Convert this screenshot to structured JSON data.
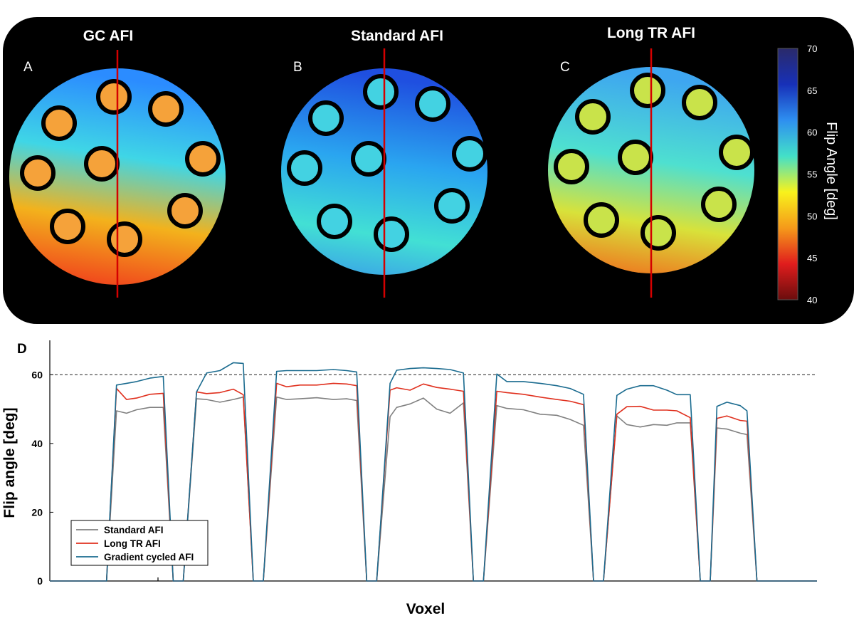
{
  "top_panel": {
    "colors": {
      "background": "#000000",
      "guide_line": "#d40000",
      "label_text": "#ffffff"
    },
    "panels": [
      {
        "letter": "A",
        "title": "GC AFI",
        "gradient_stops": [
          {
            "offset": 0.0,
            "color": "#2b8cff"
          },
          {
            "offset": 0.35,
            "color": "#3fd6e6"
          },
          {
            "offset": 0.65,
            "color": "#f3b21c"
          },
          {
            "offset": 1.0,
            "color": "#f0341c"
          }
        ],
        "inner_fill": "#f5a23a"
      },
      {
        "letter": "B",
        "title": "Standard AFI",
        "gradient_stops": [
          {
            "offset": 0.0,
            "color": "#1f4fe0"
          },
          {
            "offset": 0.4,
            "color": "#2aa5f0"
          },
          {
            "offset": 0.75,
            "color": "#42e0d4"
          },
          {
            "offset": 1.0,
            "color": "#3a9ee8"
          }
        ],
        "inner_fill": "#43d2e2"
      },
      {
        "letter": "C",
        "title": "Long TR AFI",
        "gradient_stops": [
          {
            "offset": 0.0,
            "color": "#3ea6f0"
          },
          {
            "offset": 0.4,
            "color": "#4ee0d0"
          },
          {
            "offset": 0.7,
            "color": "#d8e23a"
          },
          {
            "offset": 1.0,
            "color": "#f06a1c"
          }
        ],
        "inner_fill": "#c9e34a"
      }
    ],
    "colorbar": {
      "label": "Flip Angle [deg]",
      "ticks": [
        "40",
        "45",
        "50",
        "55",
        "60",
        "65",
        "70"
      ],
      "stops": [
        "#6a0d0d",
        "#e01d1d",
        "#f59a1a",
        "#f8f21c",
        "#43e0c8",
        "#2e8ff0",
        "#1730b8",
        "#2a2a6a"
      ]
    }
  },
  "chart_data": {
    "type": "line",
    "panel_letter": "D",
    "xlabel": "Voxel",
    "ylabel": "Flip angle [deg]",
    "ylim": [
      0,
      70
    ],
    "xlim": [
      0,
      230
    ],
    "yticks": [
      "0",
      "20",
      "40",
      "60"
    ],
    "reference_line": {
      "y": 60,
      "style": "dashed"
    },
    "grid": false,
    "legend_position": "bottom-left",
    "series": [
      {
        "name": "Standard AFI",
        "color": "#808080",
        "points": [
          [
            0,
            0
          ],
          [
            17,
            0
          ],
          [
            20,
            49.5
          ],
          [
            23,
            48.8
          ],
          [
            26,
            49.8
          ],
          [
            30,
            50.5
          ],
          [
            34,
            50.5
          ],
          [
            37,
            0
          ],
          [
            40,
            0
          ],
          [
            44,
            53
          ],
          [
            47,
            52.8
          ],
          [
            51,
            52
          ],
          [
            55,
            52.8
          ],
          [
            58,
            53.5
          ],
          [
            61,
            0
          ],
          [
            64,
            0
          ],
          [
            68,
            53.5
          ],
          [
            71,
            52.8
          ],
          [
            75,
            53
          ],
          [
            80,
            53.3
          ],
          [
            85,
            52.8
          ],
          [
            89,
            53
          ],
          [
            92,
            52.5
          ],
          [
            95,
            0
          ],
          [
            98,
            0
          ],
          [
            102,
            47.8
          ],
          [
            104,
            50.5
          ],
          [
            108,
            51.5
          ],
          [
            112,
            53.2
          ],
          [
            116,
            50
          ],
          [
            120,
            48.8
          ],
          [
            124,
            51.8
          ],
          [
            127,
            0
          ],
          [
            130,
            0
          ],
          [
            134,
            51
          ],
          [
            137,
            50.2
          ],
          [
            142,
            49.8
          ],
          [
            147,
            48.5
          ],
          [
            152,
            48.2
          ],
          [
            156,
            47
          ],
          [
            160,
            45.3
          ],
          [
            163,
            0
          ],
          [
            166,
            0
          ],
          [
            170,
            48
          ],
          [
            173,
            45.5
          ],
          [
            177,
            44.8
          ],
          [
            181,
            45.5
          ],
          [
            185,
            45.3
          ],
          [
            188,
            46
          ],
          [
            192,
            46
          ],
          [
            195,
            0
          ],
          [
            198,
            0
          ],
          [
            200,
            44.5
          ],
          [
            203,
            44.2
          ],
          [
            207,
            43
          ],
          [
            209,
            42.6
          ],
          [
            212,
            0
          ],
          [
            230,
            0
          ]
        ]
      },
      {
        "name": "Long TR AFI",
        "color": "#e0301e",
        "points": [
          [
            0,
            0
          ],
          [
            17,
            0
          ],
          [
            20,
            56
          ],
          [
            23,
            52.8
          ],
          [
            26,
            53.2
          ],
          [
            30,
            54.3
          ],
          [
            34,
            54.6
          ],
          [
            37,
            0
          ],
          [
            40,
            0
          ],
          [
            44,
            55
          ],
          [
            47,
            54.5
          ],
          [
            51,
            54.8
          ],
          [
            55,
            55.8
          ],
          [
            58,
            54.2
          ],
          [
            61,
            0
          ],
          [
            64,
            0
          ],
          [
            68,
            57.5
          ],
          [
            71,
            56.5
          ],
          [
            75,
            57
          ],
          [
            80,
            57
          ],
          [
            85,
            57.5
          ],
          [
            89,
            57.3
          ],
          [
            92,
            56.8
          ],
          [
            95,
            0
          ],
          [
            98,
            0
          ],
          [
            102,
            55.5
          ],
          [
            104,
            56.2
          ],
          [
            108,
            55.5
          ],
          [
            112,
            57.3
          ],
          [
            116,
            56.3
          ],
          [
            120,
            55.8
          ],
          [
            124,
            55.2
          ],
          [
            127,
            0
          ],
          [
            130,
            0
          ],
          [
            134,
            55.2
          ],
          [
            137,
            54.8
          ],
          [
            142,
            54.3
          ],
          [
            147,
            53.5
          ],
          [
            152,
            52.8
          ],
          [
            156,
            52.3
          ],
          [
            160,
            51.3
          ],
          [
            163,
            0
          ],
          [
            166,
            0
          ],
          [
            170,
            48.5
          ],
          [
            173,
            50.7
          ],
          [
            177,
            50.8
          ],
          [
            181,
            49.7
          ],
          [
            185,
            49.7
          ],
          [
            188,
            49.5
          ],
          [
            192,
            47.5
          ],
          [
            195,
            0
          ],
          [
            198,
            0
          ],
          [
            200,
            47.3
          ],
          [
            203,
            48
          ],
          [
            207,
            46.7
          ],
          [
            209,
            46.5
          ],
          [
            212,
            0
          ],
          [
            230,
            0
          ]
        ]
      },
      {
        "name": "Gradient cycled AFI",
        "color": "#1a6b8f",
        "points": [
          [
            0,
            0
          ],
          [
            17,
            0
          ],
          [
            20,
            57
          ],
          [
            23,
            57.5
          ],
          [
            26,
            58
          ],
          [
            30,
            59
          ],
          [
            34,
            59.5
          ],
          [
            37,
            0
          ],
          [
            40,
            0
          ],
          [
            44,
            55
          ],
          [
            47,
            60.5
          ],
          [
            51,
            61.2
          ],
          [
            55,
            63.5
          ],
          [
            58,
            63.3
          ],
          [
            61,
            0
          ],
          [
            64,
            0
          ],
          [
            68,
            61
          ],
          [
            71,
            61.2
          ],
          [
            75,
            61.2
          ],
          [
            80,
            61.2
          ],
          [
            85,
            61.5
          ],
          [
            89,
            61.2
          ],
          [
            92,
            60.8
          ],
          [
            95,
            0
          ],
          [
            98,
            0
          ],
          [
            102,
            57.5
          ],
          [
            104,
            61.3
          ],
          [
            108,
            61.8
          ],
          [
            112,
            62
          ],
          [
            116,
            61.8
          ],
          [
            120,
            61.5
          ],
          [
            124,
            60.5
          ],
          [
            127,
            0
          ],
          [
            130,
            0
          ],
          [
            134,
            60.2
          ],
          [
            137,
            58
          ],
          [
            142,
            58
          ],
          [
            147,
            57.5
          ],
          [
            152,
            56.8
          ],
          [
            156,
            56
          ],
          [
            160,
            54.3
          ],
          [
            163,
            0
          ],
          [
            166,
            0
          ],
          [
            170,
            54
          ],
          [
            173,
            55.8
          ],
          [
            177,
            56.8
          ],
          [
            181,
            56.8
          ],
          [
            185,
            55.5
          ],
          [
            188,
            54.2
          ],
          [
            192,
            54.2
          ],
          [
            195,
            0
          ],
          [
            198,
            0
          ],
          [
            200,
            50.8
          ],
          [
            203,
            52
          ],
          [
            207,
            51
          ],
          [
            209,
            49.5
          ],
          [
            212,
            0
          ],
          [
            230,
            0
          ]
        ]
      }
    ]
  }
}
